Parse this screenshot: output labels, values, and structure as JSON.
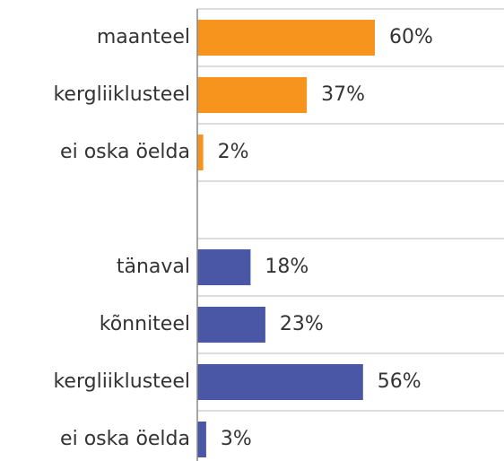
{
  "chart_data": {
    "type": "bar",
    "orientation": "horizontal",
    "categories": [
      "maanteel",
      "kergliiklusteel",
      "ei oska öelda",
      null,
      "tänaval",
      "kõnniteel",
      "kergliiklusteel",
      "ei oska öelda"
    ],
    "values": [
      60,
      37,
      2,
      null,
      18,
      23,
      56,
      3
    ],
    "value_labels": [
      "60%",
      "37%",
      "2%",
      null,
      "18%",
      "23%",
      "56%",
      "3%"
    ],
    "colors": [
      "#f7941d",
      "#f7941d",
      "#f7941d",
      null,
      "#4a56a6",
      "#4a56a6",
      "#4a56a6",
      "#4a56a6"
    ],
    "xlim": [
      0,
      100
    ],
    "grid": true
  }
}
